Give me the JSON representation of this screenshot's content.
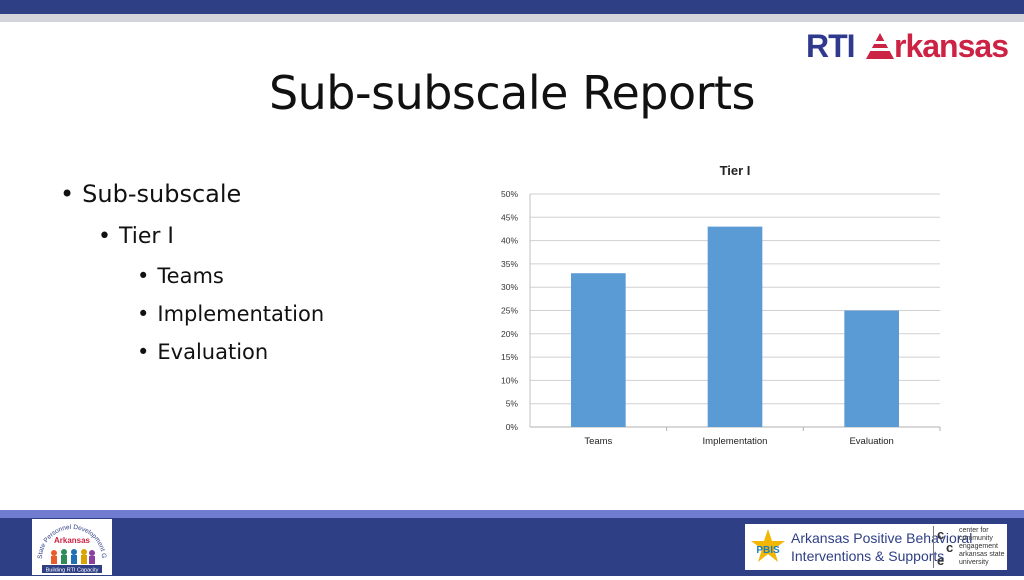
{
  "slide": {
    "title": "Sub-subscale Reports",
    "bullets": [
      {
        "text": "Sub-subscale",
        "level": 1
      },
      {
        "text": "Tier I",
        "level": 2
      },
      {
        "text": "Teams",
        "level": 3
      },
      {
        "text": "Implementation",
        "level": 3
      },
      {
        "text": "Evaluation",
        "level": 3
      }
    ],
    "bullet_glyph": "•"
  },
  "logos": {
    "rti_part": "RTI",
    "arkansas_part": "rkansas",
    "spdg": {
      "arc_text": "State Personnel Development Grant",
      "center_text": "Arkansas",
      "bottom_text": "Building RTI Capacity"
    },
    "pbis": {
      "mark": "PBIS",
      "line1": "Arkansas Positive Behavioral",
      "line2": "Interventions & Supports",
      "cce_letters": [
        "c",
        "c",
        "e"
      ],
      "cce_text": [
        "center for",
        "community",
        "engagement",
        "arkansas state",
        "university"
      ]
    }
  },
  "colors": {
    "band_dark": "#2e3f86",
    "band_light": "#d4d4dc",
    "bar": "#5b9bd5",
    "rti_blue": "#2f3a8f",
    "ark_red": "#cc2244"
  },
  "chart_data": {
    "type": "bar",
    "title": "Tier I",
    "categories": [
      "Teams",
      "Implementation",
      "Evaluation"
    ],
    "values": [
      33,
      43,
      25
    ],
    "ylim": [
      0,
      50
    ],
    "yticks": [
      "0%",
      "5%",
      "10%",
      "15%",
      "20%",
      "25%",
      "30%",
      "35%",
      "40%",
      "45%",
      "50%"
    ],
    "ytick_values": [
      0,
      5,
      10,
      15,
      20,
      25,
      30,
      35,
      40,
      45,
      50
    ],
    "grid": true,
    "legend": "none"
  }
}
